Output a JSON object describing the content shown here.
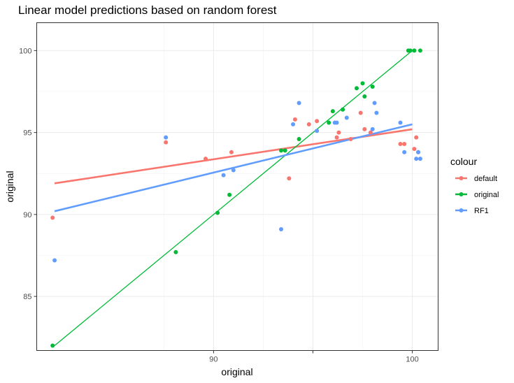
{
  "chart_data": {
    "type": "scatter",
    "title": "Linear model predictions based on random forest",
    "xlabel": "original",
    "ylabel": "original",
    "xlim": [
      81.1,
      101.3
    ],
    "ylim": [
      81.7,
      101.7
    ],
    "x_ticks": [
      90,
      95,
      100
    ],
    "x_tick_labels": [
      "90",
      "",
      "100"
    ],
    "y_ticks": [
      85,
      90,
      95,
      100
    ],
    "y_tick_labels": [
      "85",
      "90",
      "95",
      "100"
    ],
    "grid": true,
    "legend": {
      "title": "colour",
      "position": "right"
    },
    "series": [
      {
        "name": "default",
        "color": "#F8766D",
        "points": [
          [
            81.9,
            89.8
          ],
          [
            87.6,
            94.4
          ],
          [
            89.6,
            93.4
          ],
          [
            90.9,
            93.8
          ],
          [
            93.8,
            92.2
          ],
          [
            94.1,
            95.8
          ],
          [
            94.8,
            95.5
          ],
          [
            95.2,
            95.7
          ],
          [
            96.2,
            94.7
          ],
          [
            96.3,
            95.0
          ],
          [
            96.9,
            94.6
          ],
          [
            97.4,
            96.2
          ],
          [
            97.6,
            95.2
          ],
          [
            97.9,
            95.0
          ],
          [
            99.4,
            94.3
          ],
          [
            99.6,
            94.3
          ],
          [
            100.1,
            94.0
          ],
          [
            100.2,
            94.7
          ],
          [
            100.3,
            93.8
          ]
        ],
        "fit": [
          [
            82.0,
            91.9
          ],
          [
            100.0,
            95.2
          ]
        ]
      },
      {
        "name": "original",
        "color": "#00BA38",
        "points": [
          [
            81.9,
            82.0
          ],
          [
            88.1,
            87.7
          ],
          [
            90.2,
            90.1
          ],
          [
            90.8,
            91.2
          ],
          [
            93.4,
            93.9
          ],
          [
            93.6,
            93.9
          ],
          [
            94.3,
            94.6
          ],
          [
            95.8,
            95.6
          ],
          [
            96.0,
            96.3
          ],
          [
            96.5,
            96.4
          ],
          [
            97.2,
            97.7
          ],
          [
            97.5,
            98.0
          ],
          [
            97.6,
            97.2
          ],
          [
            98.0,
            97.8
          ],
          [
            99.8,
            100.0
          ],
          [
            99.9,
            100.0
          ],
          [
            100.1,
            100.0
          ],
          [
            100.4,
            100.0
          ]
        ],
        "fit": [
          [
            82.0,
            82.0
          ],
          [
            100.0,
            100.0
          ]
        ]
      },
      {
        "name": "RF1",
        "color": "#619CFF",
        "points": [
          [
            82.0,
            87.2
          ],
          [
            87.6,
            94.7
          ],
          [
            90.5,
            92.4
          ],
          [
            91.0,
            92.7
          ],
          [
            93.4,
            89.1
          ],
          [
            94.0,
            95.5
          ],
          [
            94.3,
            96.8
          ],
          [
            95.2,
            95.1
          ],
          [
            96.1,
            95.6
          ],
          [
            96.2,
            95.6
          ],
          [
            96.7,
            95.9
          ],
          [
            98.0,
            95.2
          ],
          [
            98.1,
            96.8
          ],
          [
            98.2,
            96.2
          ],
          [
            99.4,
            95.6
          ],
          [
            99.6,
            93.8
          ],
          [
            100.2,
            93.4
          ],
          [
            100.3,
            93.8
          ],
          [
            100.4,
            93.4
          ]
        ],
        "fit": [
          [
            82.0,
            90.2
          ],
          [
            100.0,
            95.5
          ]
        ]
      }
    ]
  }
}
